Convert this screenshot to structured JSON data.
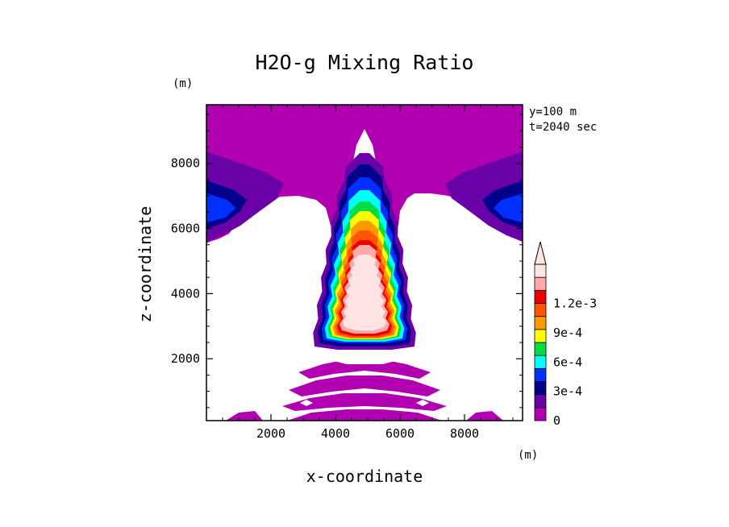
{
  "chart_data": {
    "type": "contour",
    "title": "H2O-g Mixing Ratio",
    "xlabel": "x-coordinate",
    "ylabel": "z-coordinate",
    "x_unit": "(m)",
    "y_unit": "(m)",
    "info": [
      "y=100 m",
      "t=2040 sec"
    ],
    "xlim": [
      0,
      9800
    ],
    "ylim": [
      100,
      9800
    ],
    "x_ticks": [
      2000,
      4000,
      6000,
      8000
    ],
    "y_ticks": [
      2000,
      4000,
      6000,
      8000
    ],
    "x_tick_labels": [
      "2000",
      "4000",
      "6000",
      "8000"
    ],
    "y_tick_labels": [
      "2000",
      "4000",
      "6000",
      "8000"
    ],
    "colorbar": {
      "levels": [
        0,
        0.00015,
        0.0003,
        0.00045,
        0.0006,
        0.00075,
        0.0009,
        0.00105,
        0.0012
      ],
      "labels": [
        "0",
        "3e-4",
        "6e-4",
        "9e-4",
        "1.2e-3"
      ],
      "label_values": [
        0,
        0.0003,
        0.0006,
        0.0009,
        0.0012
      ],
      "colors": [
        "#b000b0",
        "#6a00a8",
        "#00008c",
        "#0030ff",
        "#00ffff",
        "#00dd44",
        "#ffff00",
        "#ff9900",
        "#ff5500",
        "#ee0000",
        "#ffaaaa",
        "#ffe4e4"
      ]
    },
    "features": [
      {
        "kind": "upper_layer",
        "level": 0,
        "z_range": [
          6600,
          9800
        ]
      },
      {
        "kind": "side_layers",
        "levels": [
          0,
          1,
          2,
          3
        ],
        "x_centers": [
          600,
          9200
        ],
        "z_center": 6500
      },
      {
        "kind": "cloud_plume",
        "x_center": 5000,
        "z_range": [
          2500,
          8000
        ],
        "max_level": 11
      },
      {
        "kind": "lower_bands",
        "level": 0,
        "x_range": [
          2500,
          7500
        ],
        "z_range": [
          100,
          2000
        ]
      }
    ]
  }
}
